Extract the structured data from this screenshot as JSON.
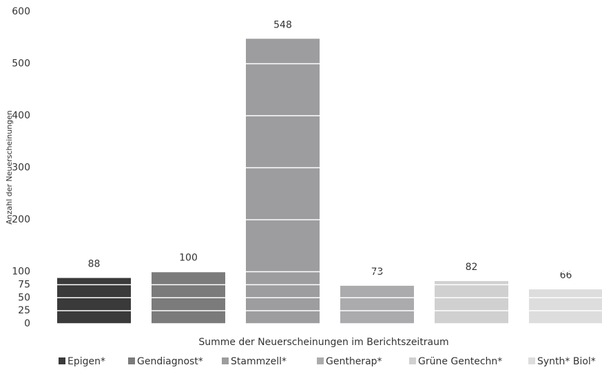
{
  "chart_data": {
    "type": "bar",
    "categories": [
      "Epigen*",
      "Gendiagnost*",
      "Stammzell*",
      "Gentherap*",
      "Grüne Gentechn*",
      "Synth* Biol*"
    ],
    "values": [
      88,
      100,
      548,
      73,
      82,
      66
    ],
    "colors": [
      "#3a3a3a",
      "#7b7b7c",
      "#9d9d9f",
      "#ababad",
      "#d0d0d1",
      "#dddddd"
    ],
    "ylabel": "Anzahl der Neuerscheinungen",
    "xlabel": "Summe der Neuerscheinungen im Berichtszeitraum",
    "ylim": [
      0,
      600
    ],
    "yticks": [
      0,
      25,
      50,
      75,
      100,
      200,
      300,
      400,
      500,
      600
    ],
    "grid": true,
    "legend": "bottom"
  }
}
